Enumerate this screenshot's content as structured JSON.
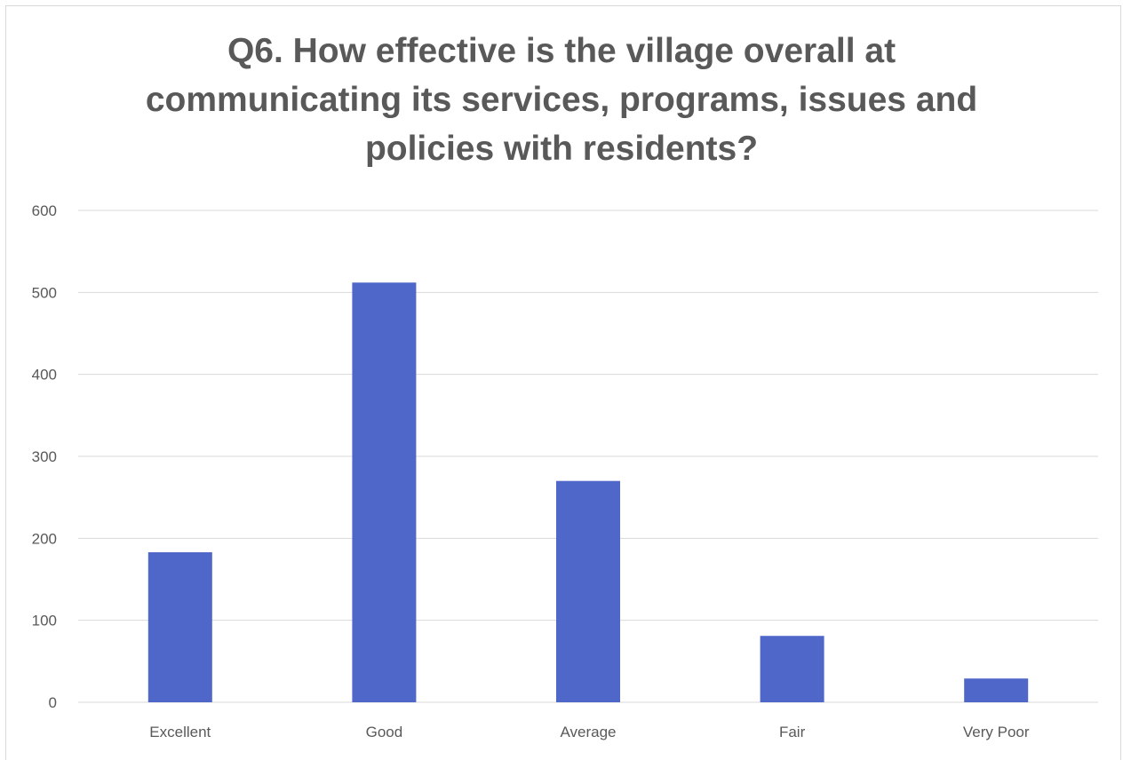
{
  "chart_data": {
    "type": "bar",
    "title_lines": [
      "Q6. How effective is the village overall at",
      "communicating its services, programs, issues and",
      "policies with residents?"
    ],
    "categories": [
      "Excellent",
      "Good",
      "Average",
      "Fair",
      "Very Poor"
    ],
    "values": [
      183,
      512,
      270,
      81,
      29
    ],
    "ylim": [
      0,
      600
    ],
    "yticks": [
      0,
      100,
      200,
      300,
      400,
      500,
      600
    ],
    "xlabel": "",
    "ylabel": "",
    "grid": true,
    "legend": "none",
    "bar_color": "#4F67C9",
    "grid_color": "#d9d9d9"
  }
}
